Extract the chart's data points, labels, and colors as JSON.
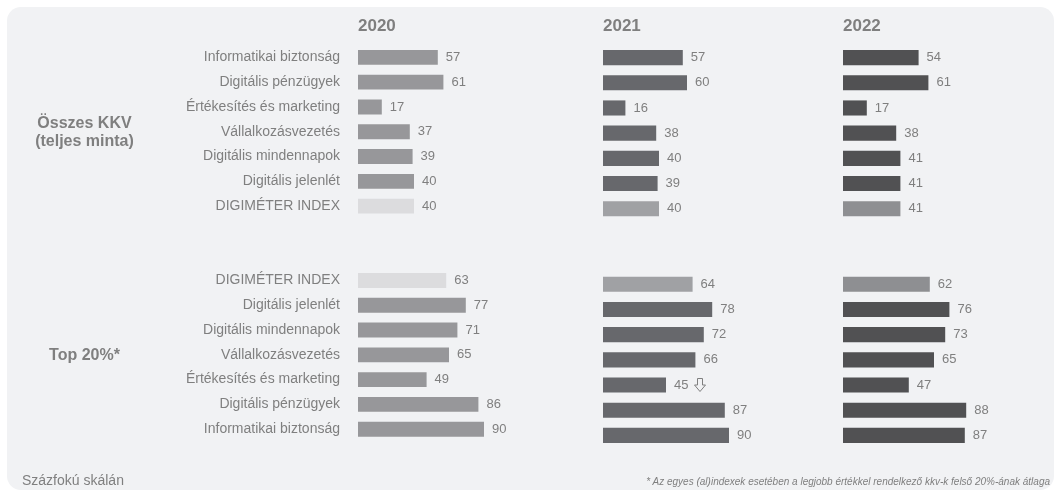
{
  "chart_data": [
    {
      "type": "bar",
      "orientation": "horizontal",
      "title": "2020",
      "categories": [
        "Informatikai biztonság",
        "Digitális pénzügyek",
        "Értékesítés és marketing",
        "Vállalkozásvezetés",
        "Digitális mindennapok",
        "Digitális jelenlét",
        "DIGIMÉTER INDEX",
        null,
        null,
        "DIGIMÉTER INDEX",
        "Digitális jelenlét",
        "Digitális mindennapok",
        "Vállalkozásvezetés",
        "Értékesítés és marketing",
        "Digitális pénzügyek",
        "Informatikai biztonság"
      ],
      "values": [
        57,
        61,
        17,
        37,
        39,
        40,
        40,
        null,
        null,
        63,
        77,
        71,
        65,
        49,
        86,
        90
      ],
      "colors": [
        "#97979a",
        "#97979a",
        "#97979a",
        "#97979a",
        "#97979a",
        "#97979a",
        "#dcdcde",
        null,
        null,
        "#dcdcde",
        "#97979a",
        "#97979a",
        "#97979a",
        "#97979a",
        "#97979a",
        "#97979a"
      ],
      "tick_labels": "y",
      "data_labels": true,
      "annotations": [
        "Összes KKV (teljes minta)",
        "Top 20%*",
        "Százfokú skálán"
      ]
    },
    {
      "type": "bar",
      "orientation": "horizontal",
      "title": "2021",
      "categories": [
        null,
        null,
        null,
        null,
        null,
        null,
        null,
        null,
        null,
        null,
        null,
        null,
        null,
        null,
        null,
        null
      ],
      "values": [
        57,
        60,
        16,
        38,
        40,
        39,
        40,
        null,
        null,
        64,
        78,
        72,
        66,
        45,
        87,
        90
      ],
      "colors": [
        "#67686c",
        "#67686c",
        "#67686c",
        "#67686c",
        "#67686c",
        "#67686c",
        "#a0a1a4",
        null,
        null,
        "#a0a1a4",
        "#67686c",
        "#67686c",
        "#67686c",
        "#67686c",
        "#67686c",
        "#67686c"
      ],
      "tick_labels": false,
      "data_labels": true
    },
    {
      "type": "bar",
      "orientation": "horizontal",
      "title": "2022",
      "categories": [
        null,
        null,
        null,
        null,
        null,
        null,
        null,
        null,
        null,
        null,
        null,
        null,
        null,
        null,
        null,
        null
      ],
      "values": [
        54,
        61,
        17,
        38,
        41,
        41,
        41,
        null,
        null,
        62,
        76,
        73,
        65,
        47,
        88,
        87
      ],
      "colors": [
        "#515153",
        "#515153",
        "#515153",
        "#515153",
        "#515153",
        "#515153",
        "#8e8f92",
        null,
        null,
        "#8e8f92",
        "#515153",
        "#515153",
        "#515153",
        "#515153",
        "#515153",
        "#515153"
      ],
      "tick_labels": false,
      "data_labels": true,
      "annotations": [
        "* Az egyes (al)indexek esetében a legjobb értékkel rendelkező kkv-k felső 20%-ának átlaga"
      ]
    }
  ]
}
